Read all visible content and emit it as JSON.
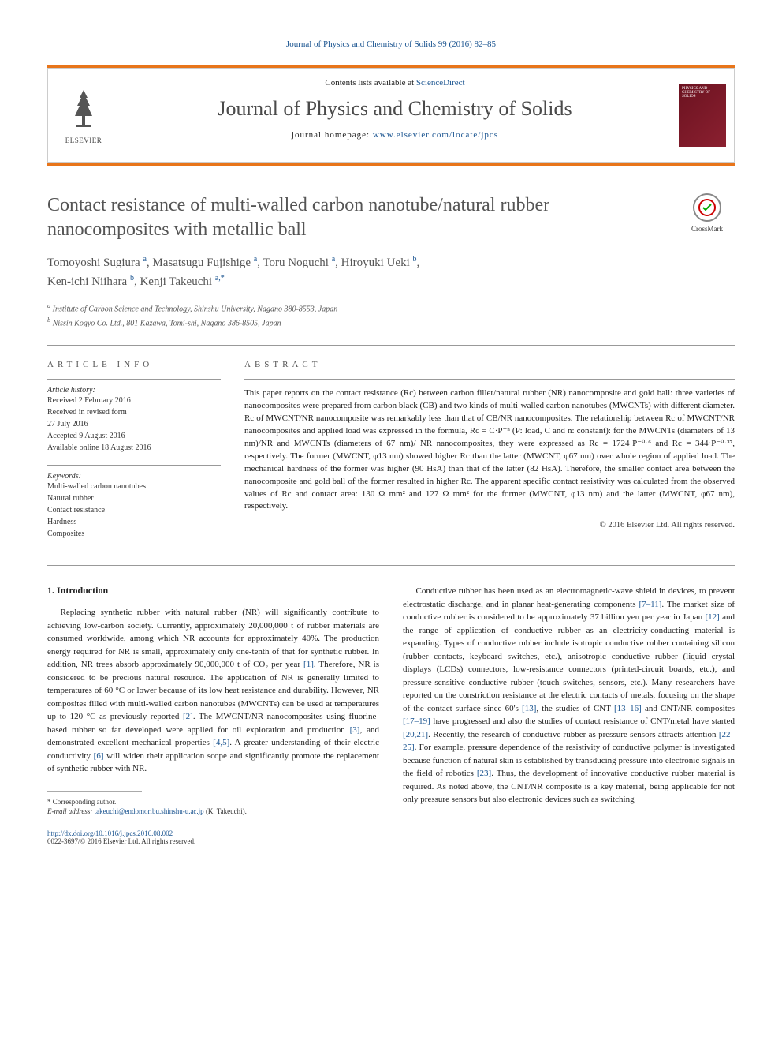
{
  "top_citation": "Journal of Physics and Chemistry of Solids 99 (2016) 82–85",
  "header": {
    "contents_prefix": "Contents lists available at ",
    "contents_link": "ScienceDirect",
    "journal_name": "Journal of Physics and Chemistry of Solids",
    "homepage_prefix": "journal homepage: ",
    "homepage_link": "www.elsevier.com/locate/jpcs",
    "elsevier_label": "ELSEVIER",
    "cover_text": "PHYSICS AND CHEMISTRY OF SOLIDS"
  },
  "crossmark": "CrossMark",
  "title": "Contact resistance of multi-walled carbon nanotube/natural rubber nanocomposites with metallic ball",
  "authors_html": "Tomoyoshi Sugiura <sup>a</sup>, Masatsugu Fujishige <sup>a</sup>, Toru Noguchi <sup>a</sup>, Hiroyuki Ueki <sup>b</sup>, Ken-ichi Niihara <sup>b</sup>, Kenji Takeuchi <sup>a,*</sup>",
  "authors": [
    {
      "name": "Tomoyoshi Sugiura",
      "aff": "a"
    },
    {
      "name": "Masatsugu Fujishige",
      "aff": "a"
    },
    {
      "name": "Toru Noguchi",
      "aff": "a"
    },
    {
      "name": "Hiroyuki Ueki",
      "aff": "b"
    },
    {
      "name": "Ken-ichi Niihara",
      "aff": "b"
    },
    {
      "name": "Kenji Takeuchi",
      "aff": "a,*"
    }
  ],
  "affiliations": {
    "a": "Institute of Carbon Science and Technology, Shinshu University, Nagano 380-8553, Japan",
    "b": "Nissin Kogyo Co. Ltd., 801 Kazawa, Tomi-shi, Nagano 386-8505, Japan"
  },
  "article_info": {
    "label": "ARTICLE INFO",
    "history_heading": "Article history:",
    "history": [
      "Received 2 February 2016",
      "Received in revised form",
      "27 July 2016",
      "Accepted 9 August 2016",
      "Available online 18 August 2016"
    ],
    "keywords_heading": "Keywords:",
    "keywords": [
      "Multi-walled carbon nanotubes",
      "Natural rubber",
      "Contact resistance",
      "Hardness",
      "Composites"
    ]
  },
  "abstract": {
    "label": "ABSTRACT",
    "text": "This paper reports on the contact resistance (Rc) between carbon filler/natural rubber (NR) nanocomposite and gold ball: three varieties of nanocomposites were prepared from carbon black (CB) and two kinds of multi-walled carbon nanotubes (MWCNTs) with different diameter. Rc of MWCNT/NR nanocomposite was remarkably less than that of CB/NR nanocomposites. The relationship between Rc of MWCNT/NR nanocomposites and applied load was expressed in the formula, Rc = C·P⁻ⁿ (P: load, C and n: constant): for the MWCNTs (diameters of 13 nm)/NR and MWCNTs (diameters of 67 nm)/ NR nanocomposites, they were expressed as Rc = 1724·P⁻⁰·⁶ and Rc = 344·P⁻⁰·³⁷, respectively. The former (MWCNT, φ13 nm) showed higher Rc than the latter (MWCNT, φ67 nm) over whole region of applied load. The mechanical hardness of the former was higher (90 HsA) than that of the latter (82 HsA). Therefore, the smaller contact area between the nanocomposite and gold ball of the former resulted in higher Rc. The apparent specific contact resistivity was calculated from the observed values of Rc and contact area: 130 Ω mm² and 127 Ω mm² for the former (MWCNT, φ13 nm) and the latter (MWCNT, φ67 nm), respectively.",
    "copyright": "© 2016 Elsevier Ltd. All rights reserved."
  },
  "body": {
    "section_heading": "1. Introduction",
    "col1": "Replacing synthetic rubber with natural rubber (NR) will significantly contribute to achieving low-carbon society. Currently, approximately 20,000,000 t of rubber materials are consumed worldwide, among which NR accounts for approximately 40%. The production energy required for NR is small, approximately only one-tenth of that for synthetic rubber. In addition, NR trees absorb approximately 90,000,000 t of CO₂ per year [1]. Therefore, NR is considered to be precious natural resource. The application of NR is generally limited to temperatures of 60 °C or lower because of its low heat resistance and durability. However, NR composites filled with multi-walled carbon nanotubes (MWCNTs) can be used at temperatures up to 120 °C as previously reported [2]. The MWCNT/NR nanocomposites using fluorine-based rubber so far developed were applied for oil exploration and production [3], and demonstrated excellent mechanical properties [4,5]. A greater understanding of their electric conductivity [6] will widen their application scope and significantly promote the replacement of synthetic rubber with NR.",
    "col2": "Conductive rubber has been used as an electromagnetic-wave shield in devices, to prevent electrostatic discharge, and in planar heat-generating components [7–11]. The market size of conductive rubber is considered to be approximately 37 billion yen per year in Japan [12] and the range of application of conductive rubber as an electricity-conducting material is expanding. Types of conductive rubber include isotropic conductive rubber containing silicon (rubber contacts, keyboard switches, etc.), anisotropic conductive rubber (liquid crystal displays (LCDs) connectors, low-resistance connectors (printed-circuit boards, etc.), and pressure-sensitive conductive rubber (touch switches, sensors, etc.). Many researchers have reported on the constriction resistance at the electric contacts of metals, focusing on the shape of the contact surface since 60's [13], the studies of CNT [13–16] and CNT/NR composites [17–19] have progressed and also the studies of contact resistance of CNT/metal have started [20,21]. Recently, the research of conductive rubber as pressure sensors attracts attention [22–25]. For example, pressure dependence of the resistivity of conductive polymer is investigated because function of natural skin is established by transducing pressure into electronic signals in the field of robotics [23]. Thus, the development of innovative conductive rubber material is required. As noted above, the CNT/NR composite is a key material, being applicable for not only pressure sensors but also electronic devices such as switching"
  },
  "footnote": {
    "corr": "* Corresponding author.",
    "email_label": "E-mail address: ",
    "email": "takeuchi@endomoribu.shinshu-u.ac.jp",
    "email_name": " (K. Takeuchi)."
  },
  "bottom": {
    "doi": "http://dx.doi.org/10.1016/j.jpcs.2016.08.002",
    "issn_copy": "0022-3697/© 2016 Elsevier Ltd. All rights reserved."
  },
  "colors": {
    "link": "#1a5490",
    "orange": "#e8751a",
    "title_gray": "#555555",
    "text": "#222222"
  }
}
